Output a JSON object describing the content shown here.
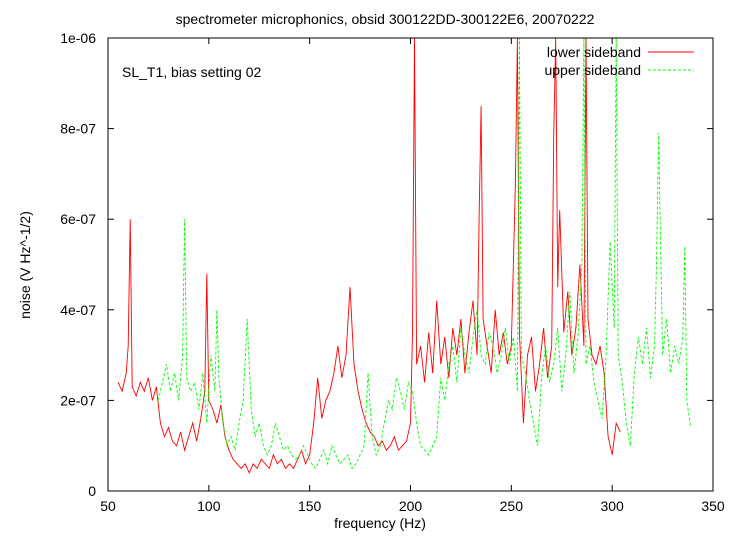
{
  "chart_data": {
    "type": "line",
    "title": "spectrometer microphonics, obsid 300122DD-300122E6, 20070222",
    "annotation": "SL_T1, bias setting 02",
    "xlabel": "frequency (Hz)",
    "ylabel": "noise (V Hz^-1/2)",
    "xlim": [
      50,
      350
    ],
    "ylim": [
      0,
      1e-06
    ],
    "x_ticks": [
      50,
      100,
      150,
      200,
      250,
      300,
      350
    ],
    "x_tick_labels": [
      "50",
      "100",
      "150",
      "200",
      "250",
      "300",
      "350"
    ],
    "y_ticks": [
      0,
      2e-07,
      4e-07,
      6e-07,
      8e-07,
      1e-06
    ],
    "y_tick_labels": [
      "0",
      "2e-07",
      "4e-07",
      "6e-07",
      "8e-07",
      "1e-06"
    ],
    "grid": false,
    "legend_position": "top-right",
    "series": [
      {
        "name": "lower sideband",
        "color": "#ff0000",
        "dashed": false,
        "x": [
          55,
          57,
          59,
          60,
          61,
          62,
          64,
          66,
          68,
          70,
          72,
          74,
          76,
          78,
          80,
          82,
          84,
          86,
          88,
          90,
          92,
          94,
          96,
          98,
          99,
          100,
          102,
          104,
          106,
          108,
          110,
          112,
          114,
          116,
          118,
          120,
          122,
          124,
          126,
          128,
          130,
          132,
          134,
          136,
          138,
          140,
          142,
          144,
          146,
          148,
          150,
          152,
          154,
          156,
          158,
          160,
          162,
          164,
          166,
          168,
          170,
          172,
          174,
          176,
          178,
          180,
          182,
          184,
          186,
          188,
          190,
          192,
          194,
          196,
          198,
          200,
          201,
          202,
          203,
          205,
          207,
          209,
          211,
          213,
          215,
          217,
          219,
          221,
          223,
          225,
          227,
          229,
          231,
          233,
          234,
          235,
          236,
          238,
          240,
          242,
          244,
          246,
          248,
          250,
          252,
          253,
          254,
          256,
          258,
          260,
          262,
          264,
          266,
          268,
          270,
          271,
          272,
          273,
          274,
          276,
          278,
          280,
          282,
          284,
          286,
          287,
          288,
          290,
          292,
          294,
          296,
          298,
          300,
          302,
          304
        ],
        "y": [
          2.4e-07,
          2.2e-07,
          2.6e-07,
          3.2e-07,
          6e-07,
          2.3e-07,
          2.1e-07,
          2.4e-07,
          2.2e-07,
          2.5e-07,
          2e-07,
          2.3e-07,
          1.5e-07,
          1.2e-07,
          1.4e-07,
          1.1e-07,
          1e-07,
          1.3e-07,
          9e-08,
          1.2e-07,
          1.5e-07,
          1.1e-07,
          1.6e-07,
          2.2e-07,
          4.8e-07,
          2e-07,
          1.8e-07,
          1.5e-07,
          1.9e-07,
          1.2e-07,
          9e-08,
          7e-08,
          6e-08,
          5e-08,
          6e-08,
          4e-08,
          6e-08,
          5e-08,
          7e-08,
          6e-08,
          5e-08,
          8e-08,
          6e-08,
          7e-08,
          5e-08,
          6e-08,
          5e-08,
          7e-08,
          9e-08,
          6e-08,
          8e-08,
          1.5e-07,
          2.5e-07,
          1.6e-07,
          2e-07,
          2.2e-07,
          2.6e-07,
          3.2e-07,
          2.5e-07,
          3e-07,
          4.5e-07,
          2.8e-07,
          2.2e-07,
          1.8e-07,
          1.5e-07,
          1.3e-07,
          1.2e-07,
          1e-07,
          1.1e-07,
          9e-08,
          1e-07,
          1.2e-07,
          9e-08,
          1e-07,
          1.1e-07,
          1.5e-07,
          3.5e-07,
          1e-06,
          2.8e-07,
          3.2e-07,
          2.4e-07,
          3.5e-07,
          2.6e-07,
          4.2e-07,
          2.8e-07,
          3.4e-07,
          2.5e-07,
          3.6e-07,
          3e-07,
          3.8e-07,
          2.6e-07,
          3.5e-07,
          4.2e-07,
          3e-07,
          6e-07,
          8.5e-07,
          3.8e-07,
          3.2e-07,
          2.6e-07,
          4e-07,
          3e-07,
          3.5e-07,
          2.8e-07,
          3.2e-07,
          6.8e-07,
          1e-06,
          3.5e-07,
          1.5e-07,
          3e-07,
          3.4e-07,
          2.2e-07,
          2.8e-07,
          3.6e-07,
          2.5e-07,
          3.2e-07,
          7.8e-07,
          1e-06,
          4.5e-07,
          6.2e-07,
          3.5e-07,
          4.4e-07,
          3e-07,
          3.6e-07,
          5e-07,
          3.2e-07,
          1e-06,
          3.8e-07,
          3e-07,
          2.8e-07,
          3.2e-07,
          2.6e-07,
          1.2e-07,
          8e-08,
          1.5e-07,
          1.3e-07
        ]
      },
      {
        "name": "upper sideband",
        "color": "#00ff00",
        "dashed": true,
        "x": [
          75,
          77,
          79,
          81,
          83,
          85,
          87,
          88,
          89,
          91,
          93,
          95,
          97,
          99,
          101,
          103,
          104,
          105,
          107,
          109,
          111,
          113,
          115,
          117,
          119,
          121,
          123,
          125,
          127,
          129,
          131,
          133,
          135,
          137,
          139,
          141,
          143,
          145,
          147,
          149,
          151,
          153,
          155,
          157,
          159,
          161,
          163,
          165,
          167,
          169,
          171,
          173,
          175,
          177,
          179,
          181,
          183,
          185,
          187,
          189,
          191,
          193,
          195,
          197,
          199,
          201,
          203,
          205,
          207,
          209,
          211,
          213,
          215,
          217,
          219,
          221,
          223,
          225,
          227,
          229,
          231,
          233,
          235,
          237,
          239,
          241,
          243,
          245,
          247,
          249,
          251,
          253,
          254,
          255,
          257,
          259,
          261,
          263,
          265,
          267,
          269,
          271,
          273,
          275,
          277,
          279,
          281,
          283,
          285,
          286,
          287,
          289,
          291,
          293,
          295,
          297,
          299,
          301,
          302,
          303,
          305,
          307,
          309,
          311,
          313,
          315,
          317,
          319,
          321,
          322,
          323,
          325,
          327,
          329,
          331,
          333,
          335,
          336,
          337,
          339
        ],
        "y": [
          2e-07,
          2.4e-07,
          2.8e-07,
          2.2e-07,
          2.6e-07,
          2e-07,
          3e-07,
          6e-07,
          2.5e-07,
          2.2e-07,
          2.4e-07,
          1.8e-07,
          2.6e-07,
          1.5e-07,
          3e-07,
          2.2e-07,
          4e-07,
          2.5e-07,
          1.5e-07,
          1e-07,
          1.2e-07,
          9e-08,
          1.5e-07,
          2e-07,
          3.8e-07,
          1.8e-07,
          1.2e-07,
          1.5e-07,
          1e-07,
          8e-08,
          1e-07,
          1.5e-07,
          1.2e-07,
          9e-08,
          1e-07,
          8e-08,
          7e-08,
          8e-08,
          1e-07,
          8e-08,
          6e-08,
          5e-08,
          7e-08,
          9e-08,
          6e-08,
          1e-07,
          8e-08,
          6e-08,
          7e-08,
          8e-08,
          5e-08,
          6e-08,
          8e-08,
          1e-07,
          2.6e-07,
          1.2e-07,
          8e-08,
          1e-07,
          1.5e-07,
          2e-07,
          1.8e-07,
          2.5e-07,
          2.2e-07,
          1.8e-07,
          2.4e-07,
          2.2e-07,
          1.5e-07,
          1e-07,
          9e-08,
          8e-08,
          1e-07,
          1.2e-07,
          2.5e-07,
          2e-07,
          2.8e-07,
          3.2e-07,
          2.4e-07,
          3.6e-07,
          3e-07,
          2.6e-07,
          3.4e-07,
          4e-07,
          3e-07,
          2.8e-07,
          3.5e-07,
          3.2e-07,
          2.6e-07,
          3e-07,
          3.6e-07,
          2.8e-07,
          3.4e-07,
          2.2e-07,
          1e-06,
          3e-07,
          2.6e-07,
          2e-07,
          1.5e-07,
          1e-07,
          2.5e-07,
          3.2e-07,
          2.4e-07,
          2.8e-07,
          3.6e-07,
          2.2e-07,
          3e-07,
          4.4e-07,
          2.6e-07,
          3.4e-07,
          5e-07,
          1e-06,
          2.8e-07,
          3.2e-07,
          2.4e-07,
          2e-07,
          1.6e-07,
          3e-07,
          5.5e-07,
          3.6e-07,
          1e-06,
          3e-07,
          2.4e-07,
          1.5e-07,
          1e-07,
          2.6e-07,
          3.4e-07,
          2.8e-07,
          3.6e-07,
          2.5e-07,
          3.2e-07,
          5e-07,
          7.9e-07,
          3e-07,
          3.8e-07,
          2.6e-07,
          3.2e-07,
          2.8e-07,
          3.4e-07,
          5.4e-07,
          2e-07,
          1.4e-07
        ]
      }
    ]
  }
}
